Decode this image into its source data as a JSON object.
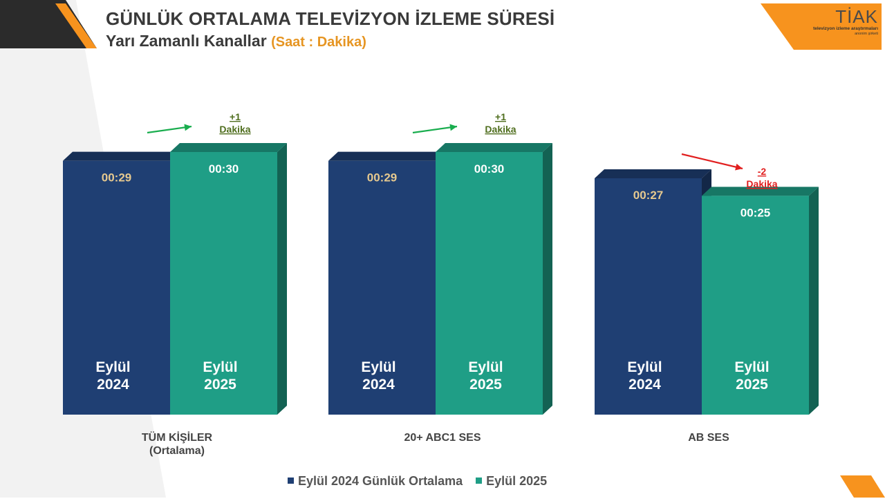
{
  "header": {
    "title": "GÜNLÜK ORTALAMA TELEVİZYON İZLEME SÜRESİ",
    "subtitle": "Yarı Zamanlı Kanallar",
    "unit": "(Saat : Dakika)"
  },
  "logo": {
    "brand": "TİAK",
    "tagline": "televizyon izleme araştırmaları",
    "sub": "anonim şirketi"
  },
  "colors": {
    "series_2024": "#1f3f73",
    "series_2025": "#1f9e86",
    "increase": "#19ad4e",
    "decrease": "#e11f1f",
    "increase_text": "#4f6e1e",
    "accent": "#f7931e"
  },
  "chart_data": {
    "type": "bar",
    "title": "GÜNLÜK ORTALAMA TELEVİZYON İZLEME SÜRESİ",
    "subtitle": "Yarı Zamanlı Kanallar (Saat : Dakika)",
    "categories": [
      "TÜM KİŞİLER\n(Ortalama)",
      "20+ ABC1 SES",
      "AB SES"
    ],
    "series": [
      {
        "name": "Eylül 2024 Günlük Ortalama",
        "bar_label": "Eylül\n2024",
        "values": [
          29,
          29,
          27
        ],
        "labels": [
          "00:29",
          "00:29",
          "00:27"
        ]
      },
      {
        "name": "Eylül 2025",
        "bar_label": "Eylül\n2025",
        "values": [
          30,
          30,
          25
        ],
        "labels": [
          "00:30",
          "00:30",
          "00:25"
        ]
      }
    ],
    "changes": [
      {
        "value": "+1",
        "unit": "Dakika",
        "direction": "up"
      },
      {
        "value": "+1",
        "unit": "Dakika",
        "direction": "up"
      },
      {
        "value": "-2",
        "unit": "Dakika",
        "direction": "down"
      }
    ],
    "ylim": [
      0,
      30
    ],
    "legend_position": "bottom",
    "grid": false
  }
}
